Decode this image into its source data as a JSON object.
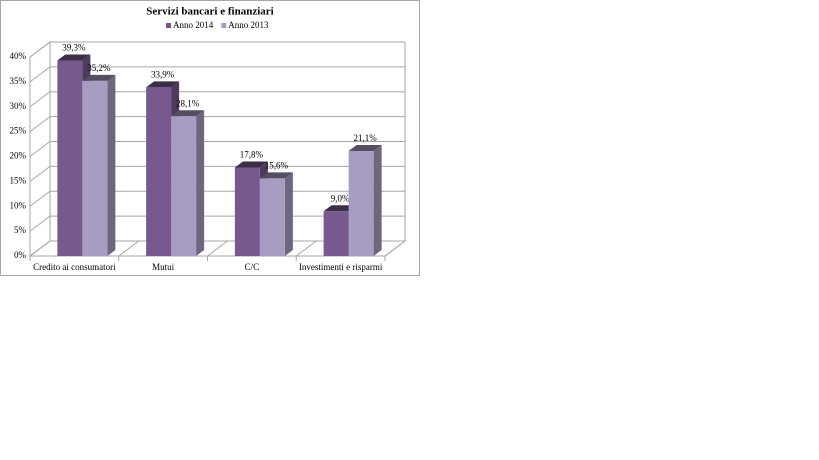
{
  "chart_data": {
    "type": "bar3d",
    "title": "Servizi bancari e finanziari",
    "categories": [
      "Credito ai consumatori",
      "Mutui",
      "C/C",
      "Investimenti e risparmi"
    ],
    "series": [
      {
        "name": "Anno 2014",
        "color": "#77598f",
        "values": [
          39.3,
          33.9,
          17.8,
          9.0
        ],
        "value_labels": [
          "39,3%",
          "33,9%",
          "17,8%",
          "9,0%"
        ]
      },
      {
        "name": "Anno 2013",
        "color": "#a99cc2",
        "values": [
          35.2,
          28.1,
          15.6,
          21.1
        ],
        "value_labels": [
          "35,2%",
          "28,1%",
          "15,6%",
          "21,1%"
        ]
      }
    ],
    "ylim": [
      0,
      40
    ],
    "yticks": [
      {
        "value": 0,
        "label": "0%"
      },
      {
        "value": 5,
        "label": "5%"
      },
      {
        "value": 10,
        "label": "10%"
      },
      {
        "value": 15,
        "label": "15%"
      },
      {
        "value": 20,
        "label": "20%"
      },
      {
        "value": 25,
        "label": "25%"
      },
      {
        "value": 30,
        "label": "30%"
      },
      {
        "value": 35,
        "label": "35%"
      },
      {
        "value": 40,
        "label": "40%"
      }
    ],
    "grid": true,
    "legend": "top"
  }
}
